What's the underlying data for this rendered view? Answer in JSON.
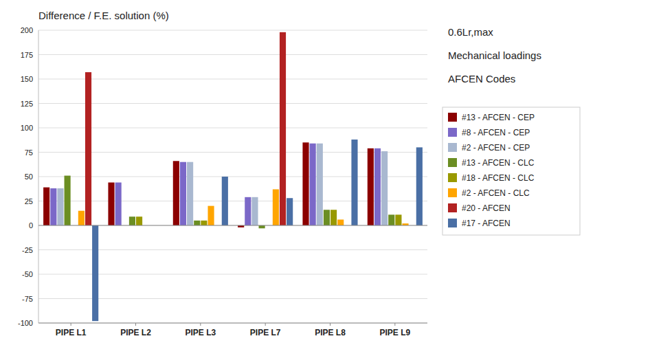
{
  "chart_data": {
    "type": "bar",
    "title": "Difference / F.E. solution (%)",
    "annotations": [
      "0.6Lr,max",
      "Mechanical loadings",
      "AFCEN Codes"
    ],
    "categories": [
      "PIPE L1",
      "PIPE L2",
      "PIPE L3",
      "PIPE L7",
      "PIPE L8",
      "PIPE L9"
    ],
    "series": [
      {
        "name": "#13 - AFCEN - CEP",
        "color": "#8B0000",
        "values": [
          39,
          44,
          66,
          -2,
          85,
          79
        ]
      },
      {
        "name": "#8 - AFCEN - CEP",
        "color": "#7B68C8",
        "values": [
          38,
          44,
          65,
          29,
          84,
          79
        ]
      },
      {
        "name": "#2 - AFCEN - CEP",
        "color": "#A9B8D0",
        "values": [
          38,
          null,
          65,
          29,
          84,
          76
        ]
      },
      {
        "name": "#13 - AFCEN - CLC",
        "color": "#6B8E23",
        "values": [
          51,
          9,
          5,
          -3,
          16,
          11
        ]
      },
      {
        "name": "#18 - AFCEN - CLC",
        "color": "#999900",
        "values": [
          null,
          9,
          5,
          null,
          16,
          11
        ]
      },
      {
        "name": "#2 - AFCEN - CLC",
        "color": "#FFA500",
        "values": [
          15,
          null,
          20,
          37,
          6,
          2
        ]
      },
      {
        "name": "#20 - AFCEN",
        "color": "#B22222",
        "values": [
          157,
          null,
          null,
          198,
          null,
          null
        ]
      },
      {
        "name": "#17 - AFCEN",
        "color": "#4A6FA5",
        "values": [
          -98,
          null,
          50,
          28,
          88,
          80
        ]
      }
    ],
    "ylim": [
      -100,
      200
    ],
    "yticks": [
      -100,
      -75,
      -50,
      -25,
      0,
      25,
      50,
      75,
      100,
      125,
      150,
      175,
      200
    ],
    "grid": true,
    "legend": "right"
  }
}
